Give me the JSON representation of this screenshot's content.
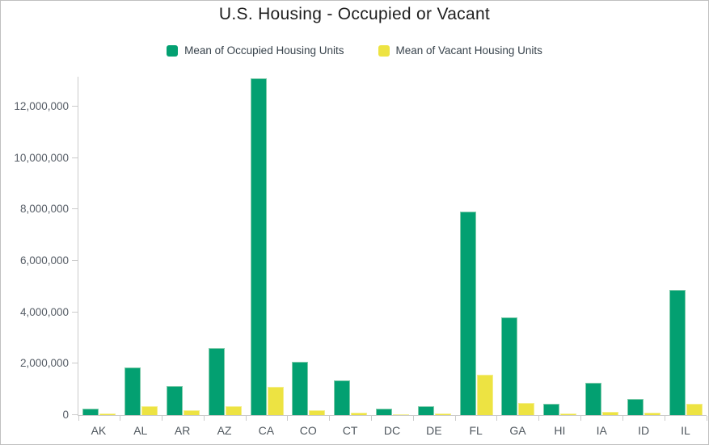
{
  "chart_data": {
    "type": "bar",
    "title": "U.S. Housing - Occupied or Vacant",
    "categories": [
      "AK",
      "AL",
      "AR",
      "AZ",
      "CA",
      "CO",
      "CT",
      "DC",
      "DE",
      "FL",
      "GA",
      "HI",
      "IA",
      "ID",
      "IL"
    ],
    "series": [
      {
        "name": "Mean of Occupied Housing Units",
        "color": "#03a071",
        "values": [
          250000,
          1850000,
          1140000,
          2620000,
          13100000,
          2080000,
          1350000,
          240000,
          330000,
          7930000,
          3810000,
          440000,
          1250000,
          620000,
          4870000
        ]
      },
      {
        "name": "Mean of Vacant Housing Units",
        "color": "#ede342",
        "values": [
          60000,
          350000,
          180000,
          360000,
          1090000,
          200000,
          100000,
          25000,
          50000,
          1580000,
          460000,
          50000,
          110000,
          80000,
          450000
        ]
      }
    ],
    "xlabel": "",
    "ylabel": "",
    "ylim": [
      0,
      13200000
    ],
    "yticks": [
      0,
      2000000,
      4000000,
      6000000,
      8000000,
      10000000,
      12000000
    ],
    "ytick_labels": [
      "0",
      "2,000,000",
      "4,000,000",
      "6,000,000",
      "8,000,000",
      "10,000,000",
      "12,000,000"
    ],
    "grid": false,
    "legend_position": "top"
  }
}
